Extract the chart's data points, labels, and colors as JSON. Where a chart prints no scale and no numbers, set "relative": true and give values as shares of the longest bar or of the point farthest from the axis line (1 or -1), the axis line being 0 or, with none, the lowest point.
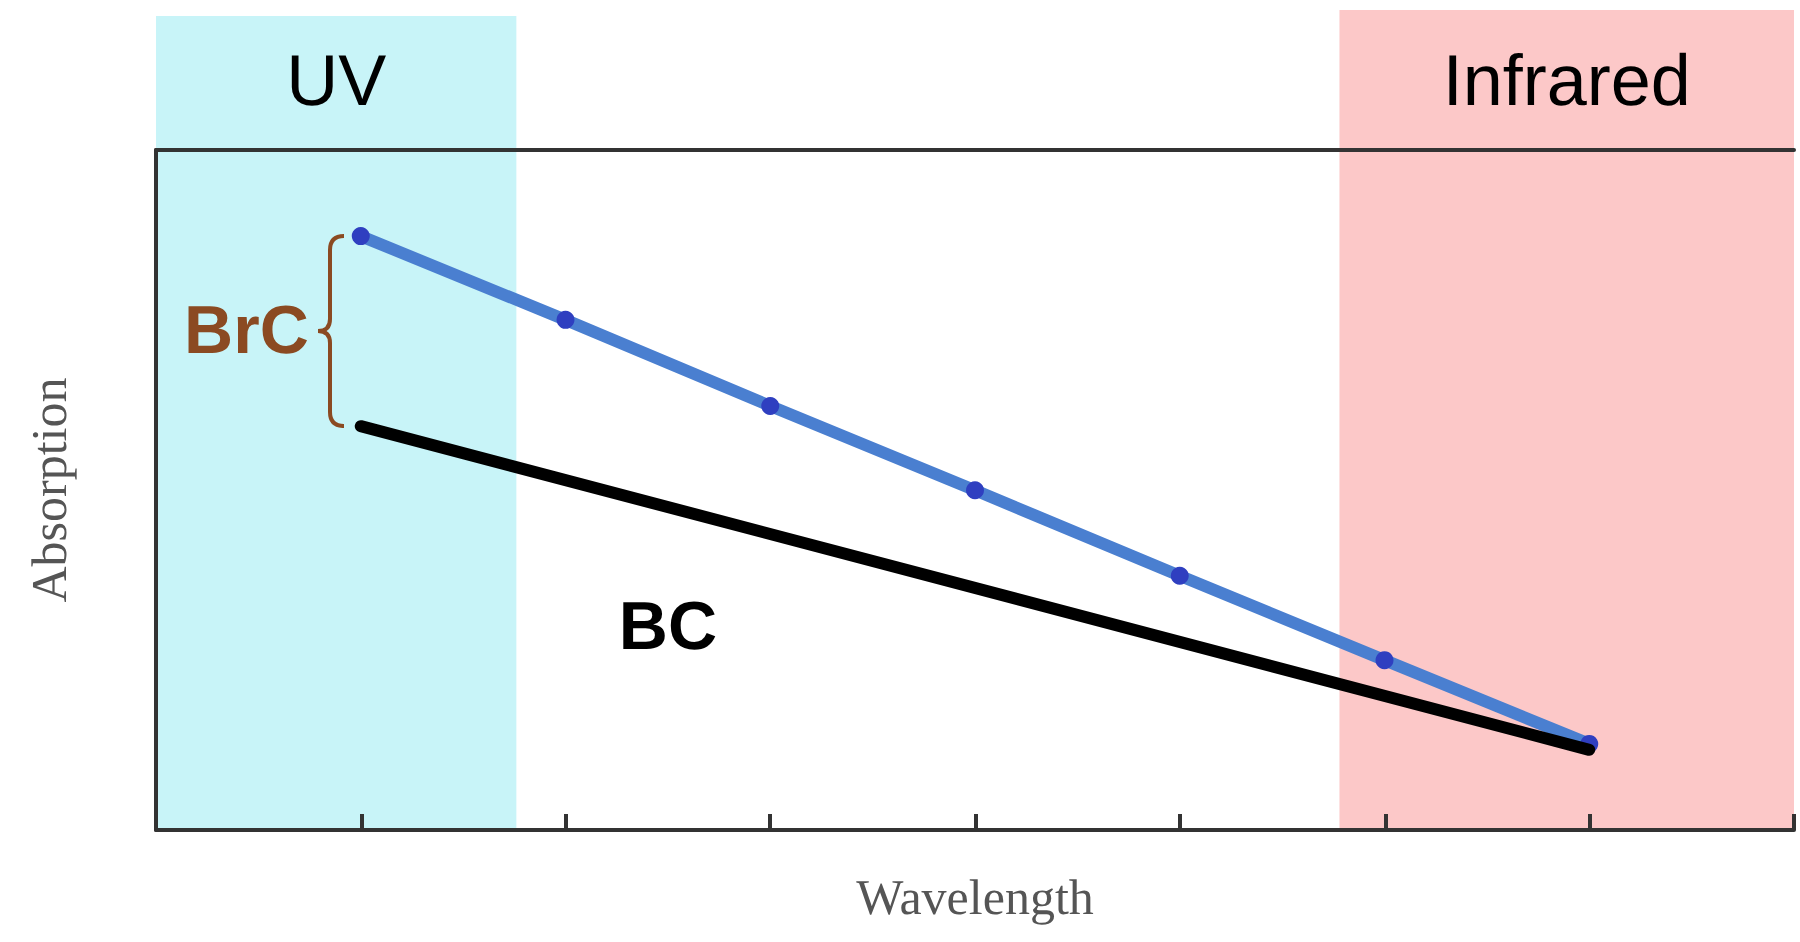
{
  "chart_data": {
    "type": "line",
    "relative": true,
    "xlabel": "Wavelength",
    "ylabel": "Absorption",
    "categories": [
      null,
      null,
      null,
      null,
      null,
      null,
      null,
      null,
      null
    ],
    "series": [
      {
        "color": "#4a7fd0",
        "marker": "circle",
        "values": [
          null,
          1,
          0.859,
          0.714,
          0.572,
          0.428,
          0.286,
          0.145,
          null
        ]
      },
      {
        "color": "#000000",
        "marker": "none",
        "values": [
          null,
          0.68,
          null,
          null,
          null,
          null,
          null,
          0.135,
          null
        ]
      }
    ],
    "annotations": [
      "UV",
      "Infrared",
      "BrC",
      "BC"
    ]
  }
}
